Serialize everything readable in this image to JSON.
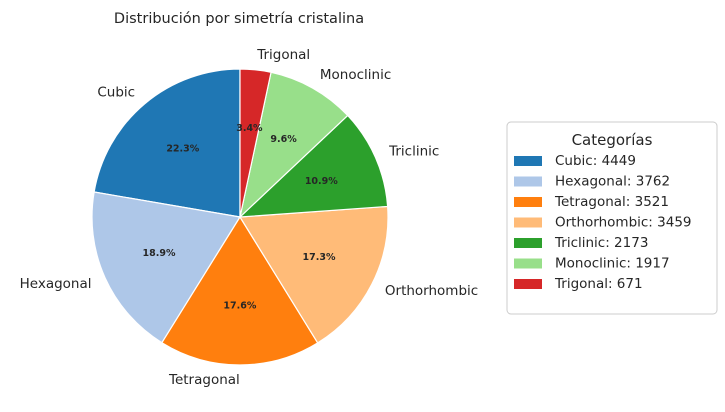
{
  "chart_data": {
    "type": "pie",
    "title": "Distribución por simetría cristalina",
    "categories": [
      "Cubic",
      "Hexagonal",
      "Tetragonal",
      "Orthorhombic",
      "Triclinic",
      "Monoclinic",
      "Trigonal"
    ],
    "values": [
      4449,
      3762,
      3521,
      3459,
      2173,
      1917,
      671
    ],
    "percent_labels": [
      "22.3%",
      "18.9%",
      "17.6%",
      "17.3%",
      "10.9%",
      "9.6%",
      "3.4%"
    ],
    "colors": [
      "#1f77b4",
      "#aec7e8",
      "#ff7f0e",
      "#ffbb78",
      "#2ca02c",
      "#98df8a",
      "#d62728"
    ],
    "start_angle_deg": 90,
    "direction": "counterclockwise",
    "legend": {
      "title": "Categorías",
      "placement": "right",
      "entries": [
        "Cubic: 4449",
        "Hexagonal: 3762",
        "Tetragonal: 3521",
        "Orthorhombic: 3459",
        "Triclinic: 2173",
        "Monoclinic: 1917",
        "Trigonal: 671"
      ]
    }
  }
}
